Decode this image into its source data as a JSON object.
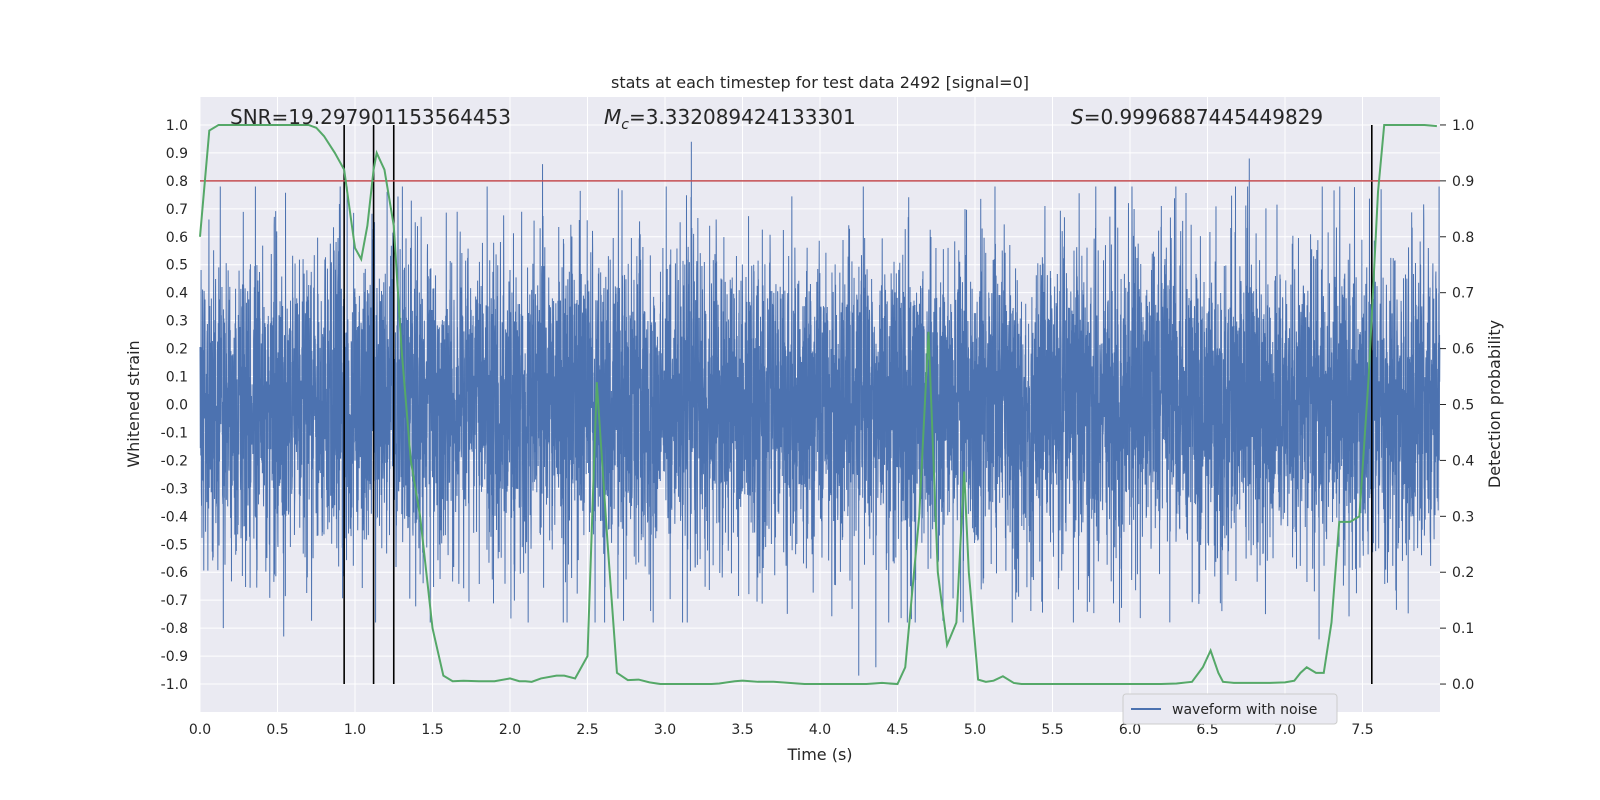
{
  "chart_data": {
    "type": "line",
    "title": "stats at each timestep for test data 2492 [signal=0]",
    "xlabel": "Time (s)",
    "ylabel": "Whitened strain",
    "y2label": "Detection probability",
    "xlim": [
      0.0,
      8.0
    ],
    "ylim": [
      -1.1,
      1.1
    ],
    "y2lim": [
      -0.05,
      1.05
    ],
    "xticks": [
      "0.0",
      "0.5",
      "1.0",
      "1.5",
      "2.0",
      "2.5",
      "3.0",
      "3.5",
      "4.0",
      "4.5",
      "5.0",
      "5.5",
      "6.0",
      "6.5",
      "7.0",
      "7.5"
    ],
    "yticks": [
      "1.0",
      "0.9",
      "0.8",
      "0.7",
      "0.6",
      "0.5",
      "0.4",
      "0.3",
      "0.2",
      "0.1",
      "0.0",
      "-0.1",
      "-0.2",
      "-0.3",
      "-0.4",
      "-0.5",
      "-0.6",
      "-0.7",
      "-0.8",
      "-0.9",
      "-1.0"
    ],
    "y2ticks": [
      "1.0",
      "0.9",
      "0.8",
      "0.7",
      "0.6",
      "0.5",
      "0.4",
      "0.3",
      "0.2",
      "0.1",
      "0.0"
    ],
    "annotations": {
      "snr": "SNR=19.297901153564453",
      "mc_symbol": "M",
      "mc_sub": "c",
      "mc_value": "=3.332089424133301",
      "s_symbol": "S",
      "s_value": "=0.9996887445449829"
    },
    "legend": {
      "label": "waveform with noise",
      "placement": "lower-right"
    },
    "grid": true,
    "colors": {
      "background": "#eaeaf2",
      "waveform": "#4c72b0",
      "probability": "#55a868",
      "threshold": "#c44e52",
      "marker": "#000000",
      "grid": "#ffffff"
    },
    "waveform": {
      "name": "waveform with noise",
      "sample_rate_hz": 1024,
      "duration_s": 8.0,
      "typical_amplitude": 0.28,
      "peaks": [
        {
          "x": 0.15,
          "y": -0.8
        },
        {
          "x": 0.54,
          "y": -0.83
        },
        {
          "x": 2.21,
          "y": 0.86
        },
        {
          "x": 3.17,
          "y": 0.94
        },
        {
          "x": 4.25,
          "y": -0.97
        },
        {
          "x": 4.36,
          "y": -0.94
        },
        {
          "x": 6.77,
          "y": 0.88
        },
        {
          "x": 7.62,
          "y": 0.77
        },
        {
          "x": 7.22,
          "y": -0.84
        }
      ]
    },
    "threshold": {
      "name": "detection threshold",
      "y2": 0.9
    },
    "markers_x": [
      0.93,
      1.12,
      1.25,
      7.56
    ],
    "probability": {
      "name": "detection probability",
      "x": [
        0.0,
        0.06,
        0.12,
        0.2,
        0.3,
        0.4,
        0.5,
        0.6,
        0.7,
        0.75,
        0.8,
        0.87,
        0.93,
        0.98,
        1.0,
        1.04,
        1.08,
        1.12,
        1.14,
        1.19,
        1.25,
        1.3,
        1.36,
        1.42,
        1.5,
        1.57,
        1.63,
        1.7,
        1.8,
        1.9,
        2.0,
        2.06,
        2.1,
        2.14,
        2.2,
        2.3,
        2.35,
        2.42,
        2.5,
        2.56,
        2.63,
        2.69,
        2.76,
        2.83,
        2.9,
        2.97,
        3.1,
        3.2,
        3.3,
        3.35,
        3.45,
        3.5,
        3.6,
        3.7,
        3.8,
        3.9,
        4.0,
        4.1,
        4.2,
        4.3,
        4.4,
        4.5,
        4.55,
        4.64,
        4.7,
        4.76,
        4.82,
        4.88,
        4.93,
        4.96,
        5.02,
        5.07,
        5.12,
        5.18,
        5.25,
        5.3,
        5.4,
        5.5,
        5.6,
        5.7,
        5.8,
        5.9,
        6.0,
        6.1,
        6.2,
        6.3,
        6.4,
        6.47,
        6.52,
        6.57,
        6.6,
        6.67,
        6.72,
        6.8,
        6.9,
        7.0,
        7.06,
        7.1,
        7.14,
        7.2,
        7.25,
        7.3,
        7.35,
        7.42,
        7.48,
        7.54,
        7.6,
        7.64,
        7.7,
        7.8,
        7.9,
        7.98
      ],
      "y": [
        0.8,
        0.99,
        1.0,
        1.0,
        1.0,
        1.0,
        1.0,
        1.0,
        1.0,
        0.995,
        0.98,
        0.95,
        0.92,
        0.82,
        0.78,
        0.76,
        0.82,
        0.92,
        0.95,
        0.92,
        0.82,
        0.6,
        0.4,
        0.3,
        0.1,
        0.015,
        0.005,
        0.006,
        0.005,
        0.005,
        0.01,
        0.005,
        0.005,
        0.004,
        0.01,
        0.015,
        0.015,
        0.01,
        0.05,
        0.54,
        0.25,
        0.02,
        0.007,
        0.008,
        0.003,
        0.0,
        0.0,
        0.0,
        0.0,
        0.001,
        0.005,
        0.006,
        0.004,
        0.004,
        0.002,
        0.0,
        0.0,
        0.0,
        0.0,
        0.0,
        0.002,
        0.0,
        0.03,
        0.3,
        0.63,
        0.2,
        0.07,
        0.11,
        0.38,
        0.2,
        0.008,
        0.004,
        0.006,
        0.014,
        0.002,
        0.0,
        0.0,
        0.0,
        0.0,
        0.0,
        0.0,
        0.0,
        0.0,
        0.0,
        0.0,
        0.001,
        0.004,
        0.03,
        0.06,
        0.02,
        0.004,
        0.002,
        0.002,
        0.002,
        0.002,
        0.003,
        0.006,
        0.02,
        0.03,
        0.02,
        0.02,
        0.11,
        0.29,
        0.29,
        0.3,
        0.55,
        0.88,
        1.0,
        1.0,
        1.0,
        1.0,
        0.998
      ]
    }
  }
}
